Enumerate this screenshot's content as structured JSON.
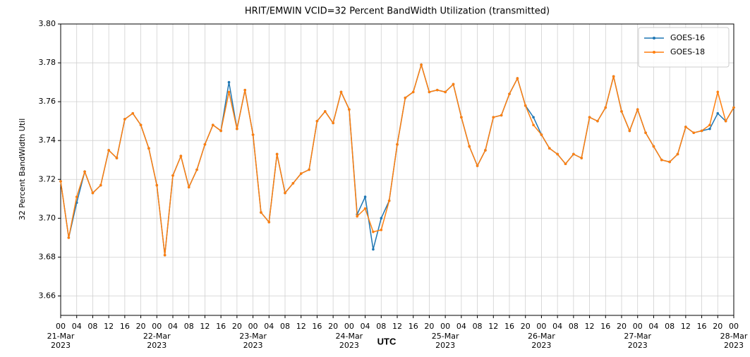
{
  "chart_data": {
    "type": "line",
    "title": "HRIT/EMWIN VCID=32 Percent BandWidth Utilization (transmitted)",
    "ylabel": "32 Percent BandWidth Util",
    "xlabel": "UTC",
    "x": [
      "2023-03-21T00:00",
      "2023-03-21T02:00",
      "2023-03-21T04:00",
      "2023-03-21T06:00",
      "2023-03-21T08:00",
      "2023-03-21T10:00",
      "2023-03-21T12:00",
      "2023-03-21T14:00",
      "2023-03-21T16:00",
      "2023-03-21T18:00",
      "2023-03-21T20:00",
      "2023-03-21T22:00",
      "2023-03-22T00:00",
      "2023-03-22T02:00",
      "2023-03-22T04:00",
      "2023-03-22T06:00",
      "2023-03-22T08:00",
      "2023-03-22T10:00",
      "2023-03-22T12:00",
      "2023-03-22T14:00",
      "2023-03-22T16:00",
      "2023-03-22T18:00",
      "2023-03-22T20:00",
      "2023-03-22T22:00",
      "2023-03-23T00:00",
      "2023-03-23T02:00",
      "2023-03-23T04:00",
      "2023-03-23T06:00",
      "2023-03-23T08:00",
      "2023-03-23T10:00",
      "2023-03-23T12:00",
      "2023-03-23T14:00",
      "2023-03-23T16:00",
      "2023-03-23T18:00",
      "2023-03-23T20:00",
      "2023-03-23T22:00",
      "2023-03-24T00:00",
      "2023-03-24T02:00",
      "2023-03-24T04:00",
      "2023-03-24T06:00",
      "2023-03-24T08:00",
      "2023-03-24T10:00",
      "2023-03-24T12:00",
      "2023-03-24T14:00",
      "2023-03-24T16:00",
      "2023-03-24T18:00",
      "2023-03-24T20:00",
      "2023-03-24T22:00",
      "2023-03-25T00:00",
      "2023-03-25T02:00",
      "2023-03-25T04:00",
      "2023-03-25T06:00",
      "2023-03-25T08:00",
      "2023-03-25T10:00",
      "2023-03-25T12:00",
      "2023-03-25T14:00",
      "2023-03-25T16:00",
      "2023-03-25T18:00",
      "2023-03-25T20:00",
      "2023-03-25T22:00",
      "2023-03-26T00:00",
      "2023-03-26T02:00",
      "2023-03-26T04:00",
      "2023-03-26T06:00",
      "2023-03-26T08:00",
      "2023-03-26T10:00",
      "2023-03-26T12:00",
      "2023-03-26T14:00",
      "2023-03-26T16:00",
      "2023-03-26T18:00",
      "2023-03-26T20:00",
      "2023-03-26T22:00",
      "2023-03-27T00:00",
      "2023-03-27T02:00",
      "2023-03-27T04:00",
      "2023-03-27T06:00",
      "2023-03-27T08:00",
      "2023-03-27T10:00",
      "2023-03-27T12:00",
      "2023-03-27T14:00",
      "2023-03-27T16:00",
      "2023-03-27T18:00",
      "2023-03-27T20:00",
      "2023-03-27T22:00",
      "2023-03-28T00:00"
    ],
    "series": [
      {
        "name": "GOES-16",
        "color": "#1f77b4",
        "values": [
          3.719,
          3.69,
          3.708,
          3.724,
          3.713,
          3.717,
          3.735,
          3.731,
          3.751,
          3.754,
          3.748,
          3.736,
          3.717,
          3.681,
          3.722,
          3.732,
          3.716,
          3.725,
          3.738,
          3.748,
          3.745,
          3.77,
          3.746,
          3.766,
          3.743,
          3.703,
          3.698,
          3.733,
          3.713,
          3.718,
          3.723,
          3.725,
          3.75,
          3.755,
          3.749,
          3.765,
          3.756,
          3.702,
          3.711,
          3.684,
          3.7,
          3.709,
          3.738,
          3.762,
          3.765,
          3.779,
          3.765,
          3.766,
          3.765,
          3.769,
          3.752,
          3.737,
          3.727,
          3.735,
          3.752,
          3.753,
          3.764,
          3.772,
          3.758,
          3.752,
          3.743,
          3.736,
          3.733,
          3.728,
          3.733,
          3.731,
          3.752,
          3.75,
          3.757,
          3.773,
          3.755,
          3.745,
          3.756,
          3.744,
          3.737,
          3.73,
          3.729,
          3.733,
          3.747,
          3.744,
          3.745,
          3.746,
          3.754,
          3.75,
          3.757
        ]
      },
      {
        "name": "GOES-18",
        "color": "#ff7f0e",
        "values": [
          3.719,
          3.69,
          3.711,
          3.724,
          3.713,
          3.717,
          3.735,
          3.731,
          3.751,
          3.754,
          3.748,
          3.736,
          3.717,
          3.681,
          3.722,
          3.732,
          3.716,
          3.725,
          3.738,
          3.748,
          3.745,
          3.765,
          3.746,
          3.766,
          3.743,
          3.703,
          3.698,
          3.733,
          3.713,
          3.718,
          3.723,
          3.725,
          3.75,
          3.755,
          3.749,
          3.765,
          3.756,
          3.701,
          3.705,
          3.693,
          3.694,
          3.709,
          3.738,
          3.762,
          3.765,
          3.779,
          3.765,
          3.766,
          3.765,
          3.769,
          3.752,
          3.737,
          3.727,
          3.735,
          3.752,
          3.753,
          3.764,
          3.772,
          3.758,
          3.748,
          3.743,
          3.736,
          3.733,
          3.728,
          3.733,
          3.731,
          3.752,
          3.75,
          3.757,
          3.773,
          3.755,
          3.745,
          3.756,
          3.744,
          3.737,
          3.73,
          3.729,
          3.733,
          3.747,
          3.744,
          3.745,
          3.748,
          3.765,
          3.75,
          3.757
        ]
      }
    ],
    "xlim": [
      "2023-03-21T00:00",
      "2023-03-28T00:00"
    ],
    "xticks": [
      {
        "value": "2023-03-21T00:00",
        "label": "00"
      },
      {
        "value": "2023-03-21T04:00",
        "label": "04"
      },
      {
        "value": "2023-03-21T08:00",
        "label": "08"
      },
      {
        "value": "2023-03-21T12:00",
        "label": "12"
      },
      {
        "value": "2023-03-21T16:00",
        "label": "16"
      },
      {
        "value": "2023-03-21T20:00",
        "label": "20"
      },
      {
        "value": "2023-03-22T00:00",
        "label": "00"
      },
      {
        "value": "2023-03-22T04:00",
        "label": "04"
      },
      {
        "value": "2023-03-22T08:00",
        "label": "08"
      },
      {
        "value": "2023-03-22T12:00",
        "label": "12"
      },
      {
        "value": "2023-03-22T16:00",
        "label": "16"
      },
      {
        "value": "2023-03-22T20:00",
        "label": "20"
      },
      {
        "value": "2023-03-23T00:00",
        "label": "00"
      },
      {
        "value": "2023-03-23T04:00",
        "label": "04"
      },
      {
        "value": "2023-03-23T08:00",
        "label": "08"
      },
      {
        "value": "2023-03-23T12:00",
        "label": "12"
      },
      {
        "value": "2023-03-23T16:00",
        "label": "16"
      },
      {
        "value": "2023-03-23T20:00",
        "label": "20"
      },
      {
        "value": "2023-03-24T00:00",
        "label": "00"
      },
      {
        "value": "2023-03-24T04:00",
        "label": "04"
      },
      {
        "value": "2023-03-24T08:00",
        "label": "08"
      },
      {
        "value": "2023-03-24T12:00",
        "label": "12"
      },
      {
        "value": "2023-03-24T16:00",
        "label": "16"
      },
      {
        "value": "2023-03-24T20:00",
        "label": "20"
      },
      {
        "value": "2023-03-25T00:00",
        "label": "00"
      },
      {
        "value": "2023-03-25T04:00",
        "label": "04"
      },
      {
        "value": "2023-03-25T08:00",
        "label": "08"
      },
      {
        "value": "2023-03-25T12:00",
        "label": "12"
      },
      {
        "value": "2023-03-25T16:00",
        "label": "16"
      },
      {
        "value": "2023-03-25T20:00",
        "label": "20"
      },
      {
        "value": "2023-03-26T00:00",
        "label": "00"
      },
      {
        "value": "2023-03-26T04:00",
        "label": "04"
      },
      {
        "value": "2023-03-26T08:00",
        "label": "08"
      },
      {
        "value": "2023-03-26T12:00",
        "label": "12"
      },
      {
        "value": "2023-03-26T16:00",
        "label": "16"
      },
      {
        "value": "2023-03-26T20:00",
        "label": "20"
      },
      {
        "value": "2023-03-27T00:00",
        "label": "00"
      },
      {
        "value": "2023-03-27T04:00",
        "label": "04"
      },
      {
        "value": "2023-03-27T08:00",
        "label": "08"
      },
      {
        "value": "2023-03-27T12:00",
        "label": "12"
      },
      {
        "value": "2023-03-27T16:00",
        "label": "16"
      },
      {
        "value": "2023-03-27T20:00",
        "label": "20"
      },
      {
        "value": "2023-03-28T00:00",
        "label": "00"
      }
    ],
    "xdate_labels": [
      {
        "value": "2023-03-21T00:00",
        "label": "21-Mar\n2023"
      },
      {
        "value": "2023-03-22T00:00",
        "label": "22-Mar\n2023"
      },
      {
        "value": "2023-03-23T00:00",
        "label": "23-Mar\n2023"
      },
      {
        "value": "2023-03-24T00:00",
        "label": "24-Mar\n2023"
      },
      {
        "value": "2023-03-25T00:00",
        "label": "25-Mar\n2023"
      },
      {
        "value": "2023-03-26T00:00",
        "label": "26-Mar\n2023"
      },
      {
        "value": "2023-03-27T00:00",
        "label": "27-Mar\n2023"
      },
      {
        "value": "2023-03-28T00:00",
        "label": "28-Mar\n2023"
      }
    ],
    "ylim": [
      3.65,
      3.8
    ],
    "yticks": [
      3.66,
      3.68,
      {
        "value": 3.7,
        "label": "3.70"
      },
      3.72,
      3.74,
      3.76,
      3.78,
      {
        "value": 3.8,
        "label": "3.80"
      }
    ],
    "grid": true,
    "legend": "upper right"
  }
}
